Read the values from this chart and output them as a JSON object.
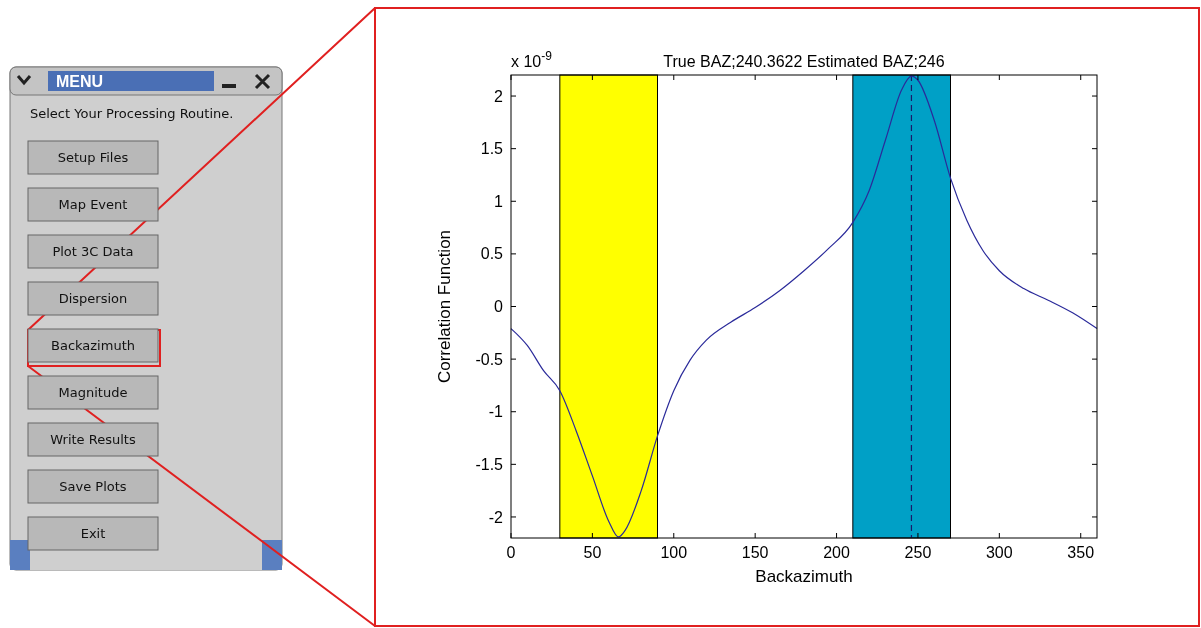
{
  "chart_data": {
    "type": "line",
    "title": "True BAZ;240.3622 Estimated BAZ;246",
    "xlabel": "Backazimuth",
    "ylabel": "Correlation Function",
    "annotations": [
      "x 10$^{-9}$",
      "MENU",
      "Select Your Processing Routine.",
      "Setup Files",
      "Map Event",
      "Plot 3C Data",
      "Dispersion",
      "Backazimuth",
      "Magnitude",
      "Write Results",
      "Save Plots",
      "Exit"
    ],
    "series": [
      {
        "color": "#2a2a9a",
        "x": [
          0,
          10,
          20,
          30,
          40,
          50,
          60,
          66,
          70,
          80,
          90,
          100,
          110,
          120,
          135,
          150,
          165,
          180,
          195,
          210,
          220,
          230,
          240,
          246,
          250,
          260,
          270,
          280,
          290,
          300,
          315,
          330,
          345,
          360
        ],
        "values": [
          -0.21,
          -0.37,
          -0.61,
          -0.8,
          -1.18,
          -1.61,
          -2.04,
          -2.19,
          -2.13,
          -1.75,
          -1.23,
          -0.8,
          -0.51,
          -0.32,
          -0.15,
          -0.01,
          0.15,
          0.34,
          0.55,
          0.8,
          1.1,
          1.58,
          2.06,
          2.19,
          2.15,
          1.77,
          1.22,
          0.82,
          0.53,
          0.34,
          0.17,
          0.06,
          -0.06,
          -0.21
        ]
      }
    ],
    "xlim": [
      0,
      360
    ],
    "xticks": [
      0,
      50,
      100,
      150,
      200,
      250,
      300,
      350
    ],
    "ylim": [
      -2.2,
      2.2
    ],
    "yticks": [
      -2,
      -1.5,
      -1,
      -0.5,
      0,
      0.5,
      1,
      1.5,
      2
    ],
    "bands": [
      {
        "axis": "x",
        "from": 30,
        "to": 90,
        "color": "#ffff00"
      },
      {
        "axis": "x",
        "from": 210,
        "to": 270,
        "color": "#00a0c6"
      }
    ],
    "ref_lines": [
      {
        "axis": "x",
        "value": 246,
        "color": "#1a1a6a",
        "line_style": "dashed"
      }
    ],
    "grid": false,
    "marker": "none",
    "line_style": "solid"
  }
}
